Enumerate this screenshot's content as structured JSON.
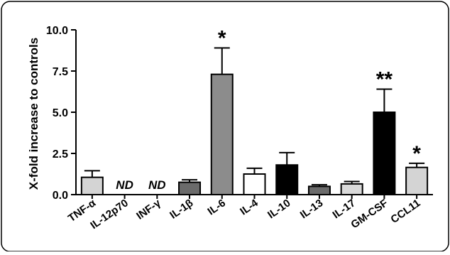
{
  "chart_data": {
    "type": "bar",
    "title": "",
    "xlabel": "",
    "ylabel": "X-fold increase to controls",
    "ylim": [
      0,
      10
    ],
    "yticks": [
      "0.0",
      "2.5",
      "5.0",
      "7.5",
      "10.0"
    ],
    "categories": [
      "TNF-α",
      "IL-12p70",
      "INF-γ",
      "IL-1β",
      "IL-6",
      "IL-4",
      "IL-10",
      "IL-13",
      "IL-17",
      "GM-CSF",
      "CCL11"
    ],
    "values": [
      1.05,
      null,
      null,
      0.75,
      7.3,
      1.25,
      1.8,
      0.5,
      0.65,
      5.0,
      1.65
    ],
    "error_upper": [
      1.45,
      null,
      null,
      0.9,
      8.9,
      1.6,
      2.55,
      0.6,
      0.8,
      6.4,
      1.9
    ],
    "annotations": [
      "",
      "ND",
      "ND",
      "",
      "*",
      "",
      "",
      "",
      "",
      "**",
      "*"
    ],
    "bar_colors": [
      "#d4d4d4",
      null,
      null,
      "#6b6b6b",
      "#8c8c8c",
      "#ffffff",
      "#000000",
      "#6b6b6b",
      "#d9d9d9",
      "#000000",
      "#d4d4d4"
    ],
    "grid": false,
    "legend": "none"
  }
}
